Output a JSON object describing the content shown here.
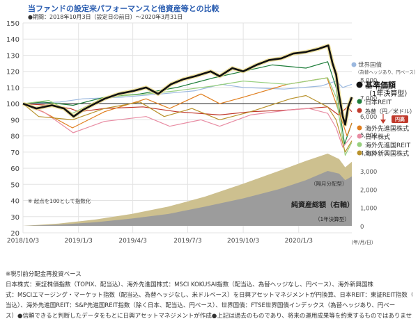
{
  "header": {
    "title": "当ファンドの設定来パフォーマンスと他資産等との比較",
    "period": "●期間：2018年10月3日（設定日の前日）～2020年3月31日"
  },
  "chart_data": {
    "type": "line",
    "title": "当ファンドの設定来パフォーマンスと他資産等との比較",
    "subtitle": "●期間：2018年10月3日（設定日の前日）～2020年3月31日",
    "x_ticks": [
      "2018/10/3",
      "2019/1/3",
      "2019/4/3",
      "2019/7/3",
      "2019/10/3",
      "2020/1/3"
    ],
    "x_unit": "（年/月/日）",
    "xlim": [
      "2018-10-03",
      "2020-03-31"
    ],
    "y_left": {
      "ticks": [
        20,
        30,
        40,
        50,
        60,
        70,
        80,
        90,
        100,
        110,
        120,
        130,
        140,
        150
      ],
      "lim": [
        20,
        150
      ]
    },
    "y_right": {
      "unit": "（億円）",
      "ticks": [
        "8,000",
        "7,000",
        "6,000",
        "5,000",
        "4,000",
        "3,000",
        "2,000",
        "1,000",
        "0"
      ],
      "tick_values": [
        8000,
        7000,
        6000,
        5000,
        4000,
        3000,
        2000,
        1000,
        0
      ]
    },
    "baseline": 100,
    "grid": true,
    "legend_position": "right",
    "annotation": "※ 起点を100として指数化",
    "area_labels": {
      "dividend": "（隔月分配型）",
      "net_assets": "純資産総額（右軸）",
      "annual": "（1年決算型）"
    },
    "legend": {
      "world_bond": "世界国債",
      "world_bond_note": "（為替ヘッジあり、円ベース）",
      "nav_title": "基準価額",
      "nav_sub": "（1年決算型）",
      "jreit": "日本REIT",
      "fx": "為替（円／米ドル）",
      "yen_high": "円高",
      "foreign_dev": "海外先進国株式",
      "jp_stock": "日本株式",
      "foreign_reit": "海外先進国REIT",
      "em_stock": "海外新興国株式"
    },
    "series": [
      {
        "key": "nav",
        "name": "基準価額（1年決算型）",
        "color": "#111111",
        "points": [
          [
            "2018-10-03",
            100
          ],
          [
            "2018-10-25",
            97
          ],
          [
            "2018-11-20",
            99
          ],
          [
            "2018-12-10",
            97
          ],
          [
            "2018-12-26",
            92
          ],
          [
            "2019-01-10",
            96
          ],
          [
            "2019-01-25",
            99
          ],
          [
            "2019-02-15",
            103
          ],
          [
            "2019-03-10",
            106
          ],
          [
            "2019-04-05",
            108
          ],
          [
            "2019-04-25",
            110
          ],
          [
            "2019-05-15",
            106
          ],
          [
            "2019-06-05",
            112
          ],
          [
            "2019-06-25",
            115
          ],
          [
            "2019-07-15",
            117
          ],
          [
            "2019-08-10",
            120
          ],
          [
            "2019-08-25",
            117
          ],
          [
            "2019-09-15",
            122
          ],
          [
            "2019-10-03",
            120
          ],
          [
            "2019-10-25",
            124
          ],
          [
            "2019-11-15",
            127
          ],
          [
            "2019-12-05",
            128
          ],
          [
            "2019-12-25",
            131
          ],
          [
            "2020-01-15",
            132
          ],
          [
            "2020-02-05",
            134
          ],
          [
            "2020-02-21",
            136
          ],
          [
            "2020-02-28",
            125
          ],
          [
            "2020-03-05",
            118
          ],
          [
            "2020-03-10",
            105
          ],
          [
            "2020-03-16",
            92
          ],
          [
            "2020-03-20",
            87
          ],
          [
            "2020-03-25",
            98
          ],
          [
            "2020-03-31",
            104
          ]
        ]
      },
      {
        "key": "world_bond",
        "name": "世界国債",
        "color": "#9bb8df",
        "points": [
          [
            "2018-10-03",
            100
          ],
          [
            "2018-12-03",
            101
          ],
          [
            "2019-01-10",
            103
          ],
          [
            "2019-03-15",
            104
          ],
          [
            "2019-05-20",
            106
          ],
          [
            "2019-07-15",
            108
          ],
          [
            "2019-08-28",
            112
          ],
          [
            "2019-10-03",
            110
          ],
          [
            "2019-12-10",
            109
          ],
          [
            "2020-02-10",
            111
          ],
          [
            "2020-03-05",
            114
          ],
          [
            "2020-03-16",
            110
          ],
          [
            "2020-03-31",
            112
          ]
        ]
      },
      {
        "key": "jreit",
        "name": "日本REIT",
        "color": "#1e7d3a",
        "points": [
          [
            "2018-10-03",
            100
          ],
          [
            "2018-11-05",
            101
          ],
          [
            "2018-12-25",
            99
          ],
          [
            "2019-02-15",
            104
          ],
          [
            "2019-04-15",
            106
          ],
          [
            "2019-06-15",
            110
          ],
          [
            "2019-08-15",
            116
          ],
          [
            "2019-10-03",
            120
          ],
          [
            "2019-11-20",
            124
          ],
          [
            "2020-01-15",
            122
          ],
          [
            "2020-02-20",
            126
          ],
          [
            "2020-03-05",
            110
          ],
          [
            "2020-03-19",
            75
          ],
          [
            "2020-03-31",
            88
          ]
        ]
      },
      {
        "key": "fx",
        "name": "為替（円／米ドル）",
        "color": "#c0392b",
        "points": [
          [
            "2018-10-03",
            100
          ],
          [
            "2018-11-15",
            99
          ],
          [
            "2018-12-20",
            97
          ],
          [
            "2019-01-04",
            95
          ],
          [
            "2019-02-15",
            97
          ],
          [
            "2019-04-20",
            98
          ],
          [
            "2019-06-15",
            95
          ],
          [
            "2019-08-25",
            93
          ],
          [
            "2019-10-15",
            95
          ],
          [
            "2019-12-15",
            96
          ],
          [
            "2020-02-20",
            98
          ],
          [
            "2020-03-09",
            93
          ],
          [
            "2020-03-24",
            98
          ],
          [
            "2020-03-31",
            95
          ]
        ]
      },
      {
        "key": "foreign_dev",
        "name": "海外先進国株式",
        "color": "#e07e1e",
        "points": [
          [
            "2018-10-03",
            100
          ],
          [
            "2018-11-05",
            95
          ],
          [
            "2018-12-24",
            85
          ],
          [
            "2019-02-15",
            95
          ],
          [
            "2019-04-25",
            103
          ],
          [
            "2019-06-03",
            97
          ],
          [
            "2019-07-25",
            106
          ],
          [
            "2019-08-25",
            100
          ],
          [
            "2019-10-03",
            104
          ],
          [
            "2019-12-15",
            112
          ],
          [
            "2020-02-19",
            116
          ],
          [
            "2020-03-05",
            100
          ],
          [
            "2020-03-23",
            80
          ],
          [
            "2020-03-31",
            88
          ]
        ]
      },
      {
        "key": "jp_stock",
        "name": "日本株式",
        "color": "#e88ca3",
        "points": [
          [
            "2018-10-03",
            100
          ],
          [
            "2018-11-10",
            94
          ],
          [
            "2018-12-25",
            82
          ],
          [
            "2019-02-15",
            89
          ],
          [
            "2019-04-25",
            92
          ],
          [
            "2019-06-03",
            86
          ],
          [
            "2019-07-25",
            90
          ],
          [
            "2019-08-25",
            86
          ],
          [
            "2019-10-15",
            93
          ],
          [
            "2019-12-17",
            96
          ],
          [
            "2020-01-20",
            97
          ],
          [
            "2020-02-20",
            94
          ],
          [
            "2020-03-05",
            85
          ],
          [
            "2020-03-16",
            73
          ],
          [
            "2020-03-31",
            80
          ]
        ]
      },
      {
        "key": "foreign_reit",
        "name": "海外先進国REIT",
        "color": "#96cf7d",
        "points": [
          [
            "2018-10-03",
            100
          ],
          [
            "2018-11-15",
            102
          ],
          [
            "2018-12-24",
            94
          ],
          [
            "2019-02-15",
            104
          ],
          [
            "2019-04-25",
            106
          ],
          [
            "2019-06-15",
            108
          ],
          [
            "2019-08-15",
            111
          ],
          [
            "2019-10-03",
            114
          ],
          [
            "2019-12-15",
            112
          ],
          [
            "2020-02-20",
            116
          ],
          [
            "2020-03-05",
            104
          ],
          [
            "2020-03-20",
            68
          ],
          [
            "2020-03-31",
            76
          ]
        ]
      },
      {
        "key": "em_stock",
        "name": "海外新興国株式",
        "color": "#b9922c",
        "points": [
          [
            "2018-10-03",
            100
          ],
          [
            "2018-10-29",
            92
          ],
          [
            "2018-12-24",
            90
          ],
          [
            "2019-02-15",
            97
          ],
          [
            "2019-04-15",
            101
          ],
          [
            "2019-05-25",
            92
          ],
          [
            "2019-07-10",
            97
          ],
          [
            "2019-08-25",
            90
          ],
          [
            "2019-10-15",
            95
          ],
          [
            "2019-12-20",
            103
          ],
          [
            "2020-01-15",
            105
          ],
          [
            "2020-02-20",
            98
          ],
          [
            "2020-03-05",
            90
          ],
          [
            "2020-03-20",
            70
          ],
          [
            "2020-03-31",
            77
          ]
        ]
      }
    ],
    "areas": [
      {
        "key": "dividend",
        "name": "隔月分配型",
        "color": "#cdc08f",
        "axis": "right",
        "points": [
          [
            "2018-10-03",
            0
          ],
          [
            "2018-12-01",
            120
          ],
          [
            "2019-02-01",
            350
          ],
          [
            "2019-04-01",
            650
          ],
          [
            "2019-06-01",
            1050
          ],
          [
            "2019-08-01",
            1600
          ],
          [
            "2019-10-03",
            2300
          ],
          [
            "2019-12-01",
            3000
          ],
          [
            "2020-01-15",
            3550
          ],
          [
            "2020-02-20",
            3950
          ],
          [
            "2020-03-10",
            3650
          ],
          [
            "2020-03-20",
            3200
          ],
          [
            "2020-03-31",
            3500
          ]
        ]
      },
      {
        "key": "net_assets_annual",
        "name": "1年決算型",
        "color": "#9c9c9c",
        "axis": "right",
        "points": [
          [
            "2018-10-03",
            0
          ],
          [
            "2018-12-01",
            60
          ],
          [
            "2019-02-01",
            200
          ],
          [
            "2019-04-01",
            400
          ],
          [
            "2019-06-01",
            650
          ],
          [
            "2019-08-01",
            1050
          ],
          [
            "2019-10-03",
            1500
          ],
          [
            "2019-12-01",
            2000
          ],
          [
            "2020-01-15",
            2500
          ],
          [
            "2020-02-20",
            3000
          ],
          [
            "2020-03-10",
            2850
          ],
          [
            "2020-03-20",
            2500
          ],
          [
            "2020-03-31",
            2700
          ]
        ]
      }
    ]
  },
  "notes": [
    "※税引前分配金再投資ベース",
    "日本株式：東証株価指数（TOPIX、配当込）、海外先進国株式：MSCI KOKUSAI指数（配当込、為替ヘッジなし、円ベース）、海外新興国株",
    "式：MSCIエマージング・マーケット指数（配当込、為替ヘッジなし、米ドルベース）を日興アセットマネジメントが円換算、日本REIT：東証REIT指数（配",
    "当込）、海外先進国REIT：S&P先進国REIT指数（除く日本、配当込、円ベース）、世界国債：FTSE世界国債インデックス（為替ヘッジあり、円ベー",
    "ス）●信頼できると判断したデータをもとに日興アセットマネジメントが作成●上記は過去のものであり、将来の運用成果等を約束するものではありません。"
  ]
}
